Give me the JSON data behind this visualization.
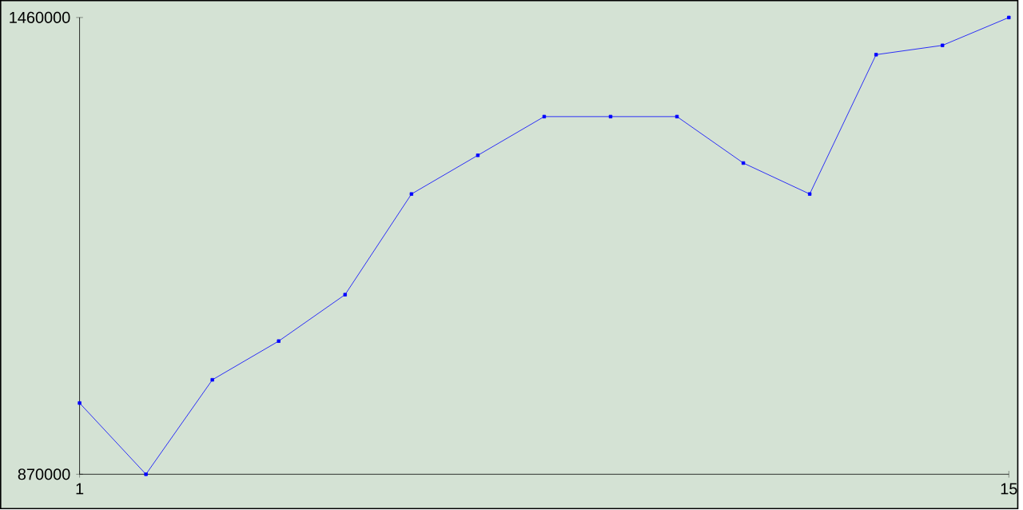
{
  "chart_data": {
    "type": "line",
    "x": [
      1,
      2,
      3,
      4,
      5,
      6,
      7,
      8,
      9,
      10,
      11,
      12,
      13,
      14,
      15
    ],
    "values": [
      962000,
      870000,
      992000,
      1042000,
      1102000,
      1232000,
      1282000,
      1332000,
      1332000,
      1332000,
      1272000,
      1232000,
      1412000,
      1424000,
      1460000
    ],
    "color": "#0000ff",
    "marker": "square",
    "xlim": [
      1,
      15
    ],
    "xticks": [
      1,
      15
    ],
    "ylim": [
      870000,
      1460000
    ],
    "yticks": [
      870000,
      1460000
    ],
    "grid": false
  }
}
